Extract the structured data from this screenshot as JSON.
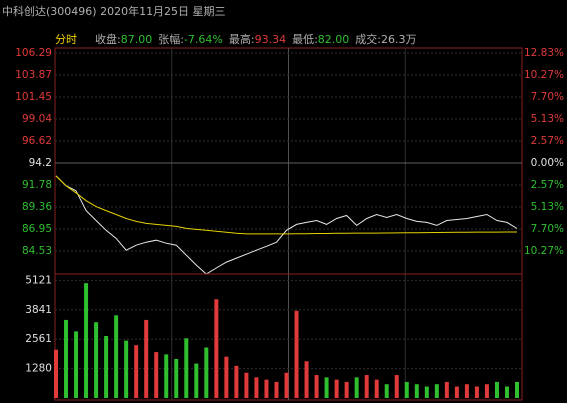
{
  "header": {
    "title": "中科创达(300496) 2020年11月25日 星期三"
  },
  "info": {
    "mode": "分时",
    "items": [
      {
        "label": "收盘:",
        "value": "87.00"
      },
      {
        "label": "张幅:",
        "value": "-7.64%"
      },
      {
        "label": "最高:",
        "value": "93.34"
      },
      {
        "label": "最低:",
        "value": "82.00"
      },
      {
        "label": "成交:",
        "value": "26.3万"
      }
    ]
  },
  "chart_data": [
    {
      "type": "line",
      "ylim": [
        82.0,
        106.4
      ],
      "yticks": [
        106.29,
        103.87,
        101.45,
        99.04,
        96.62,
        94.2,
        91.78,
        89.36,
        86.95,
        84.53
      ],
      "y2lim": [
        -12.95,
        12.95
      ],
      "y2ticks": [
        {
          "value": 12.83,
          "label": "12.83%"
        },
        {
          "value": 10.27,
          "label": "10.27%"
        },
        {
          "value": 7.7,
          "label": "7.70%"
        },
        {
          "value": 5.13,
          "label": "5.13%"
        },
        {
          "value": 2.57,
          "label": "2.57%"
        },
        {
          "value": 0,
          "label": "0.00%"
        },
        {
          "value": -2.57,
          "label": "2.57%"
        },
        {
          "value": -5.13,
          "label": "5.13%"
        },
        {
          "value": -7.7,
          "label": "7.70%"
        },
        {
          "value": -10.27,
          "label": "10.27%"
        }
      ],
      "grid": true,
      "series": [
        {
          "name": "价格",
          "color": "#e8e8e8",
          "values": [
            92.78,
            91.7,
            91.15,
            88.97,
            87.88,
            86.8,
            85.92,
            84.62,
            85.16,
            85.49,
            85.71,
            85.38,
            85.16,
            84.07,
            82.98,
            82.0,
            82.66,
            83.31,
            83.75,
            84.18,
            84.62,
            85.05,
            85.49,
            86.8,
            87.45,
            87.67,
            87.88,
            87.45,
            88.1,
            88.43,
            87.34,
            88.1,
            88.54,
            88.21,
            88.54,
            88.1,
            87.78,
            87.67,
            87.34,
            87.88,
            87.99,
            88.1,
            88.32,
            88.54,
            87.88,
            87.67,
            87.0
          ]
        },
        {
          "name": "均价",
          "color": "#e6d200",
          "values": [
            92.78,
            91.7,
            90.93,
            90.06,
            89.41,
            88.97,
            88.54,
            88.1,
            87.78,
            87.56,
            87.45,
            87.34,
            87.23,
            87.01,
            86.9,
            86.8,
            86.69,
            86.58,
            86.47,
            86.41,
            86.41,
            86.41,
            86.41,
            86.41,
            86.43,
            86.43,
            86.45,
            86.45,
            86.47,
            86.47,
            86.49,
            86.49,
            86.5,
            86.51,
            86.52,
            86.53,
            86.54,
            86.55,
            86.56,
            86.57,
            86.58,
            86.59,
            86.6,
            86.6,
            86.61,
            86.62,
            86.62
          ]
        }
      ]
    },
    {
      "type": "bar",
      "ylim": [
        0,
        5400
      ],
      "yticks": [
        5121,
        3841,
        2561,
        1280
      ],
      "up_color": "#e03a3a",
      "down_color": "#2fbf2f",
      "values": [
        2100,
        3400,
        2900,
        5000,
        3300,
        2700,
        3600,
        2500,
        2300,
        3400,
        2000,
        1900,
        1700,
        2600,
        1500,
        2200,
        4300,
        1800,
        1400,
        1100,
        900,
        800,
        700,
        1100,
        3800,
        1600,
        1000,
        900,
        800,
        700,
        900,
        1000,
        800,
        600,
        1000,
        700,
        600,
        500,
        600,
        700,
        500,
        600,
        500,
        600,
        700,
        500,
        700
      ]
    }
  ]
}
